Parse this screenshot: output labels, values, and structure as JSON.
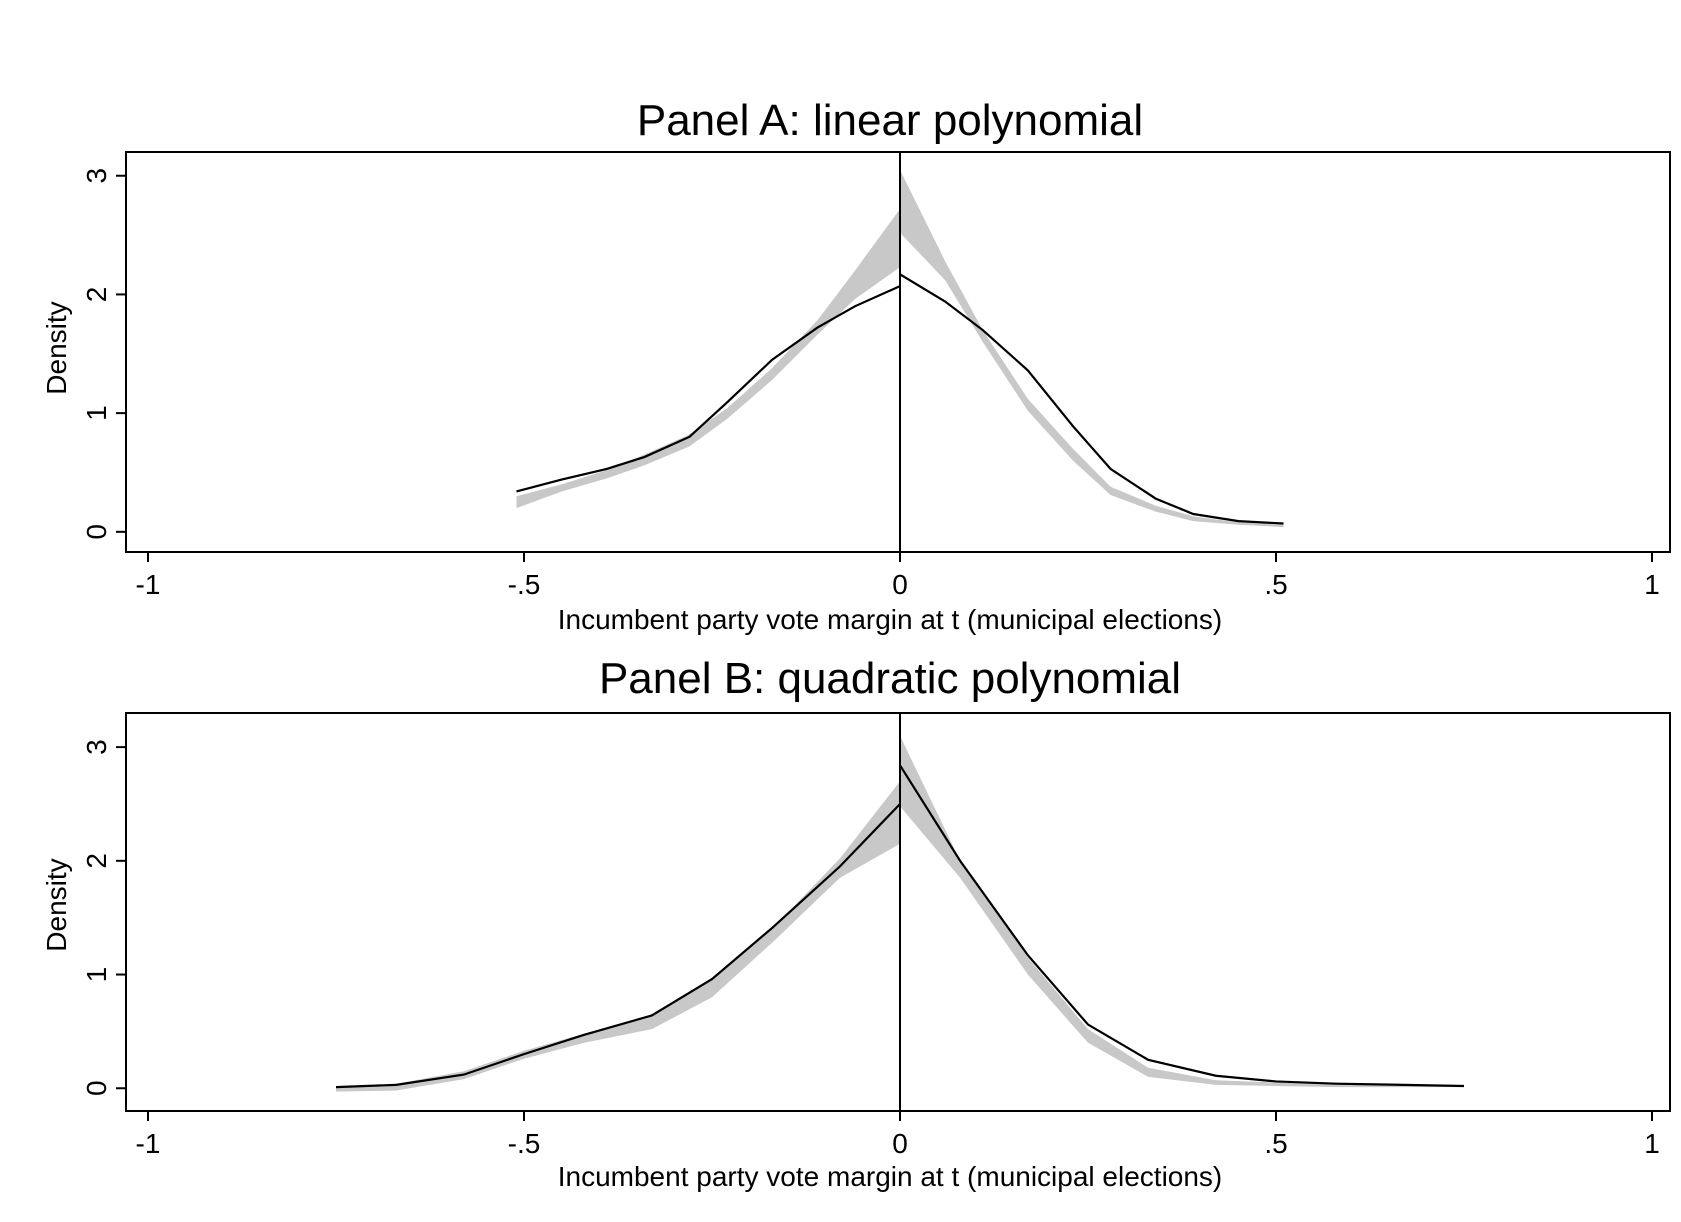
{
  "chart_data": [
    {
      "type": "line",
      "title": "Panel A: linear polynomial",
      "xlabel": "Incumbent party vote margin at t (municipal elections)",
      "ylabel": "Density",
      "xlim": [
        -1,
        1
      ],
      "ylim": [
        -0.17,
        3.2
      ],
      "xticks": [
        -1,
        -0.5,
        0,
        0.5,
        1
      ],
      "xtick_labels": [
        "-1",
        "-.5",
        "0",
        ".5",
        "1"
      ],
      "yticks": [
        0,
        1,
        2,
        3
      ],
      "ytick_labels": [
        "0",
        "1",
        "2",
        "3"
      ],
      "cutoff": 0,
      "grid": false,
      "legend": "none",
      "empirical_density": {
        "x": [
          -0.51,
          -0.45,
          -0.39,
          -0.34,
          -0.28,
          -0.23,
          -0.17,
          -0.11,
          -0.06,
          0.0,
          0.0,
          0.06,
          0.11,
          0.17,
          0.23,
          0.28,
          0.34,
          0.39,
          0.45,
          0.51
        ],
        "y": [
          0.34,
          0.44,
          0.53,
          0.63,
          0.8,
          1.09,
          1.45,
          1.72,
          1.9,
          2.07,
          2.17,
          1.94,
          1.7,
          1.36,
          0.89,
          0.53,
          0.28,
          0.15,
          0.09,
          0.07
        ]
      },
      "fitted_band_left": {
        "x": [
          -0.51,
          -0.45,
          -0.39,
          -0.34,
          -0.28,
          -0.23,
          -0.17,
          -0.11,
          -0.06,
          0.0
        ],
        "lower": [
          0.2,
          0.34,
          0.45,
          0.56,
          0.72,
          0.95,
          1.28,
          1.66,
          1.96,
          2.23
        ],
        "upper": [
          0.3,
          0.4,
          0.52,
          0.65,
          0.82,
          1.04,
          1.38,
          1.78,
          2.2,
          2.72
        ]
      },
      "fitted_band_right": {
        "x": [
          0.0,
          0.06,
          0.11,
          0.17,
          0.23,
          0.28,
          0.34,
          0.39,
          0.45,
          0.51
        ],
        "lower": [
          2.52,
          2.12,
          1.6,
          1.02,
          0.6,
          0.31,
          0.17,
          0.09,
          0.06,
          0.04
        ],
        "upper": [
          3.05,
          2.28,
          1.7,
          1.12,
          0.7,
          0.38,
          0.22,
          0.13,
          0.08,
          0.06
        ]
      }
    },
    {
      "type": "line",
      "title": "Panel B: quadratic polynomial",
      "xlabel": "Incumbent party vote margin at t (municipal elections)",
      "ylabel": "Density",
      "xlim": [
        -1,
        1
      ],
      "ylim": [
        -0.2,
        3.3
      ],
      "xticks": [
        -1,
        -0.5,
        0,
        0.5,
        1
      ],
      "xtick_labels": [
        "-1",
        "-.5",
        "0",
        ".5",
        "1"
      ],
      "yticks": [
        0,
        1,
        2,
        3
      ],
      "ytick_labels": [
        "0",
        "1",
        "2",
        "3"
      ],
      "cutoff": 0,
      "grid": false,
      "legend": "none",
      "empirical_density": {
        "x": [
          -0.75,
          -0.67,
          -0.58,
          -0.5,
          -0.42,
          -0.33,
          -0.25,
          -0.17,
          -0.08,
          0.0,
          0.0,
          0.08,
          0.17,
          0.25,
          0.33,
          0.42,
          0.5,
          0.58,
          0.67,
          0.75
        ],
        "y": [
          0.01,
          0.03,
          0.12,
          0.3,
          0.47,
          0.64,
          0.96,
          1.41,
          1.95,
          2.5,
          2.84,
          2.0,
          1.17,
          0.56,
          0.25,
          0.11,
          0.06,
          0.04,
          0.03,
          0.02
        ]
      },
      "fitted_band_left": {
        "x": [
          -0.75,
          -0.67,
          -0.58,
          -0.5,
          -0.42,
          -0.33,
          -0.25,
          -0.17,
          -0.08,
          0.0
        ],
        "lower": [
          -0.03,
          -0.02,
          0.08,
          0.26,
          0.4,
          0.52,
          0.8,
          1.28,
          1.85,
          2.15
        ],
        "upper": [
          0.01,
          0.04,
          0.15,
          0.33,
          0.48,
          0.63,
          0.95,
          1.4,
          2.02,
          2.7
        ]
      },
      "fitted_band_right": {
        "x": [
          0.0,
          0.08,
          0.17,
          0.25,
          0.33,
          0.42,
          0.5,
          0.58,
          0.67,
          0.75
        ],
        "lower": [
          2.48,
          1.85,
          1.0,
          0.4,
          0.1,
          0.03,
          0.02,
          0.01,
          0.01,
          0.01
        ],
        "upper": [
          3.1,
          2.0,
          1.15,
          0.52,
          0.18,
          0.07,
          0.05,
          0.04,
          0.03,
          0.02
        ]
      }
    }
  ],
  "colors": {
    "band": "#c8c8c8",
    "line": "#000000",
    "frame": "#000000"
  }
}
